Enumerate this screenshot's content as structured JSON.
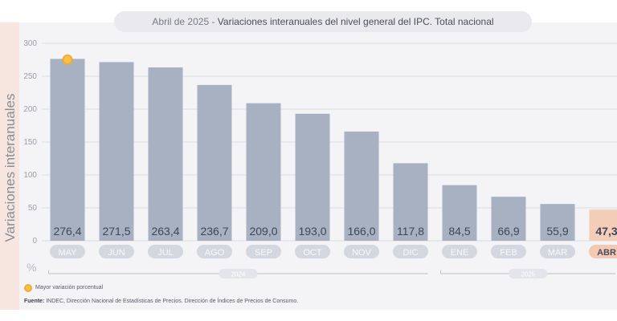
{
  "title": {
    "prefix": "Abril de 2025 -",
    "main": "Variaciones interanuales del nivel general del IPC. Total nacional"
  },
  "legend": {
    "label": "Mayor variación porcentual"
  },
  "source": {
    "label": "Fuente:",
    "text": "INDEC, Dirección Nacional de Estadísticas de Precios. Dirección de Índices de Precios de Consumo."
  },
  "chart_data": {
    "type": "bar",
    "ylabel": "Variaciones interanuales",
    "yunit": "%",
    "ylim": [
      0,
      300
    ],
    "yticks": [
      0,
      50,
      100,
      150,
      200,
      250,
      300
    ],
    "categories": [
      "MAY",
      "JUN",
      "JUL",
      "AGO",
      "SEP",
      "OCT",
      "NOV",
      "DIC",
      "ENE",
      "FEB",
      "MAR",
      "ABR"
    ],
    "values": [
      276.4,
      271.5,
      263.4,
      236.7,
      209.0,
      193.0,
      166.0,
      117.8,
      84.5,
      66.9,
      55.9,
      47.3
    ],
    "value_labels": [
      "276,4",
      "271,5",
      "263,4",
      "236,7",
      "209,0",
      "193,0",
      "166,0",
      "117,8",
      "84,5",
      "66,9",
      "55,9",
      "47,3"
    ],
    "year_groups": [
      {
        "label": "2024",
        "categories": [
          "MAY",
          "JUN",
          "JUL",
          "AGO",
          "SEP",
          "OCT",
          "NOV",
          "DIC"
        ]
      },
      {
        "label": "2025",
        "categories": [
          "ENE",
          "FEB",
          "MAR",
          "ABR"
        ]
      }
    ],
    "highlight_max_index": 0,
    "highlight_last_index": 11,
    "grid": true,
    "colors": {
      "bar": "#a7b1c2",
      "bar_last": "#f4cdb8",
      "category_pill": "#d3d7e0",
      "category_pill_last": "#f3c9b3",
      "value_text": "#3f4658",
      "max_marker": "#f6c445",
      "max_marker_stroke": "#f2a93b"
    }
  }
}
